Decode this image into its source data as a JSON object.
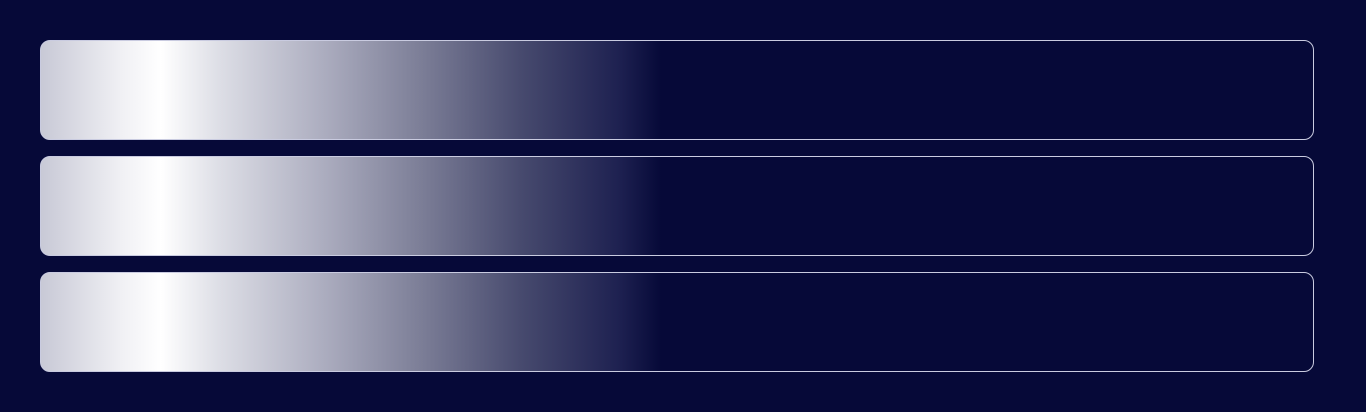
{
  "panels": [
    {
      "id": "panel-1"
    },
    {
      "id": "panel-2"
    },
    {
      "id": "panel-3"
    }
  ],
  "colors": {
    "background": "#060938",
    "panel_border": "#c9cbe0",
    "shimmer_highlight": "#ffffff"
  }
}
